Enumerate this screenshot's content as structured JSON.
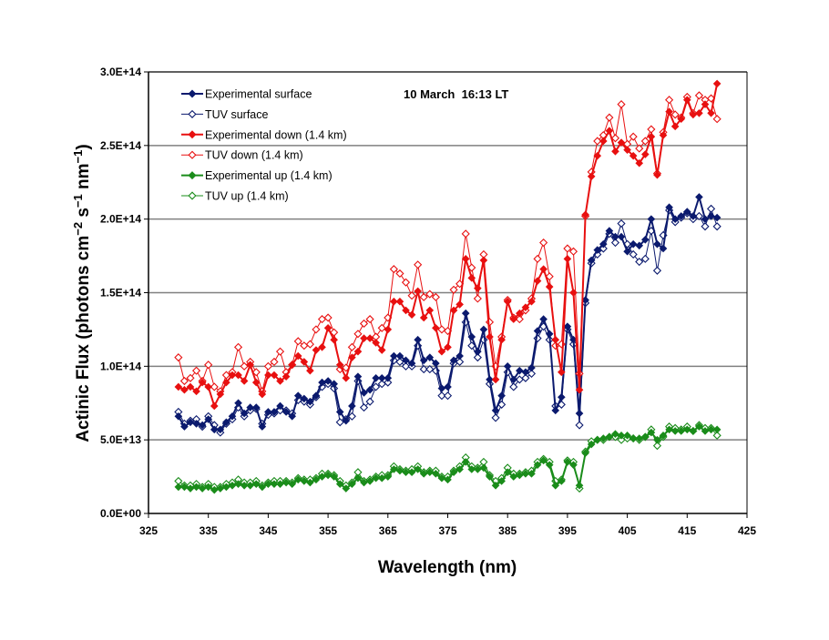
{
  "chart_data": {
    "type": "line",
    "title": "10 March  16:13 LT",
    "xlabel": "Wavelength (nm)",
    "ylabel": {
      "prefix": "Actinic Flux (photons cm",
      "sup1": "−2",
      "mid1": " s",
      "sup2": "−1",
      "mid2": " nm",
      "sup3": "−1",
      "suffix": ")"
    },
    "xlim": [
      325,
      425
    ],
    "ylim": [
      0,
      300000000000000.0
    ],
    "x_ticks": [
      "325",
      "335",
      "345",
      "355",
      "365",
      "375",
      "385",
      "395",
      "405",
      "415",
      "425"
    ],
    "y_ticks": [
      "0.0E+00",
      "5.0E+13",
      "1.0E+14",
      "1.5E+14",
      "2.0E+14",
      "2.5E+14",
      "3.0E+14"
    ],
    "grid": "horizontal",
    "legend_position": "top-left",
    "y_multiplier": 10000000000000.0,
    "x_start": 330,
    "x_step": 1,
    "series": [
      {
        "name": "Experimental surface",
        "color": "#0b1a6e",
        "marker": "filled-diamond",
        "values": [
          6.6,
          5.9,
          6.2,
          6.1,
          6.0,
          6.4,
          5.7,
          5.7,
          6.2,
          6.6,
          7.5,
          6.8,
          7.2,
          7.2,
          5.9,
          6.9,
          6.9,
          7.3,
          6.9,
          6.6,
          8.0,
          7.8,
          7.6,
          8.0,
          8.9,
          9.0,
          8.8,
          6.9,
          6.3,
          7.3,
          9.3,
          8.2,
          8.4,
          9.2,
          9.2,
          9.2,
          10.7,
          10.7,
          10.4,
          10.2,
          11.8,
          10.4,
          10.6,
          10.2,
          8.5,
          8.6,
          10.4,
          10.7,
          13.6,
          12.0,
          11.0,
          12.5,
          9.1,
          7.0,
          8.0,
          10.0,
          9.1,
          9.7,
          9.6,
          9.9,
          12.4,
          13.2,
          12.2,
          7.0,
          7.9,
          12.7,
          11.8,
          6.8,
          14.5,
          17.2,
          17.9,
          18.3,
          19.2,
          18.8,
          18.8,
          17.8,
          18.3,
          18.2,
          18.6,
          20.0,
          18.3,
          18.0,
          20.8,
          20.0,
          20.2,
          20.5,
          20.2,
          21.5,
          20.0,
          20.2,
          20.1
        ]
      },
      {
        "name": "TUV surface",
        "color": "#0b1a6e",
        "marker": "open-diamond",
        "values": [
          6.9,
          6.1,
          6.3,
          6.4,
          5.9,
          6.6,
          6.0,
          5.5,
          6.1,
          6.4,
          7.2,
          6.6,
          7.0,
          7.1,
          6.1,
          6.7,
          6.8,
          7.0,
          7.0,
          6.8,
          7.7,
          7.6,
          7.4,
          7.9,
          8.6,
          8.8,
          8.5,
          6.2,
          6.4,
          6.6,
          9.0,
          7.2,
          7.6,
          8.6,
          8.8,
          8.9,
          10.4,
          10.3,
          10.0,
          10.0,
          11.4,
          9.8,
          9.8,
          9.7,
          8.0,
          8.0,
          10.2,
          10.3,
          13.0,
          11.4,
          10.6,
          11.8,
          8.8,
          6.5,
          7.4,
          9.6,
          8.6,
          9.1,
          9.2,
          9.5,
          11.9,
          12.7,
          11.8,
          7.3,
          7.4,
          12.5,
          11.5,
          6.0,
          14.3,
          17.0,
          17.6,
          18.0,
          19.0,
          18.4,
          19.7,
          18.3,
          17.6,
          17.1,
          17.3,
          19.2,
          16.5,
          18.9,
          20.6,
          19.8,
          20.1,
          20.4,
          20.0,
          20.2,
          19.5,
          20.7,
          19.5
        ]
      },
      {
        "name": "Experimental down (1.4 km)",
        "color": "#e81010",
        "marker": "filled-diamond",
        "values": [
          8.6,
          8.4,
          8.6,
          8.3,
          8.9,
          8.6,
          7.3,
          8.1,
          8.9,
          9.4,
          9.4,
          9.0,
          10.1,
          8.9,
          8.1,
          9.4,
          9.4,
          9.0,
          9.3,
          10.1,
          10.7,
          10.3,
          9.7,
          11.1,
          11.3,
          12.6,
          11.8,
          10.1,
          9.2,
          10.6,
          11.0,
          11.9,
          11.9,
          11.6,
          11.1,
          12.5,
          14.4,
          14.4,
          13.8,
          13.5,
          15.1,
          13.3,
          13.8,
          12.6,
          11.0,
          11.3,
          13.8,
          14.2,
          17.3,
          16.0,
          15.3,
          17.2,
          12.0,
          9.1,
          11.8,
          14.4,
          13.2,
          13.6,
          14.0,
          14.4,
          15.8,
          16.6,
          15.4,
          11.8,
          9.6,
          17.3,
          15.0,
          8.4,
          20.3,
          22.9,
          24.3,
          25.3,
          26.0,
          24.6,
          25.2,
          24.7,
          24.3,
          23.8,
          24.4,
          25.6,
          23.0,
          25.7,
          27.3,
          26.3,
          26.8,
          28.1,
          27.1,
          27.2,
          27.8,
          27.2,
          29.2
        ]
      },
      {
        "name": "TUV down (1.4 km)",
        "color": "#e81010",
        "marker": "open-diamond",
        "values": [
          10.6,
          9.0,
          9.2,
          9.7,
          9.0,
          10.1,
          8.6,
          8.3,
          9.4,
          9.6,
          11.3,
          10.0,
          10.3,
          9.6,
          8.3,
          10.0,
          10.3,
          11.0,
          9.6,
          10.1,
          11.7,
          11.4,
          11.5,
          12.5,
          13.2,
          13.3,
          12.3,
          9.8,
          9.9,
          11.3,
          12.2,
          12.9,
          13.2,
          12.0,
          12.6,
          13.3,
          16.6,
          16.3,
          15.7,
          14.8,
          16.9,
          14.7,
          14.9,
          14.7,
          12.5,
          12.4,
          15.2,
          15.6,
          19.0,
          16.7,
          14.6,
          17.6,
          13.0,
          10.0,
          12.0,
          14.5,
          13.3,
          13.2,
          13.8,
          14.6,
          17.3,
          18.4,
          16.1,
          11.4,
          11.5,
          18.0,
          17.8,
          9.5,
          20.2,
          23.2,
          25.3,
          25.7,
          26.9,
          25.5,
          27.8,
          25.1,
          25.6,
          24.8,
          25.3,
          26.1,
          23.1,
          25.9,
          28.1,
          27.1,
          26.9,
          28.3,
          27.2,
          28.4,
          28.1,
          28.2,
          26.8
        ]
      },
      {
        "name": "Experimental up (1.4 km)",
        "color": "#1a8c1a",
        "marker": "filled-diamond",
        "values": [
          1.8,
          1.8,
          1.7,
          1.8,
          1.7,
          1.8,
          1.6,
          1.7,
          1.8,
          1.9,
          2.0,
          1.9,
          1.9,
          2.0,
          1.8,
          2.0,
          2.0,
          2.0,
          2.1,
          2.0,
          2.3,
          2.2,
          2.1,
          2.3,
          2.5,
          2.6,
          2.5,
          2.0,
          1.7,
          2.0,
          2.4,
          2.1,
          2.2,
          2.4,
          2.4,
          2.5,
          3.0,
          2.9,
          2.8,
          2.8,
          3.0,
          2.7,
          2.8,
          2.7,
          2.4,
          2.3,
          2.8,
          3.0,
          3.5,
          3.0,
          3.0,
          3.1,
          2.5,
          1.9,
          2.2,
          2.8,
          2.5,
          2.6,
          2.7,
          2.7,
          3.3,
          3.6,
          3.3,
          1.9,
          2.2,
          3.5,
          3.3,
          1.9,
          4.1,
          4.7,
          5.0,
          5.1,
          5.2,
          5.4,
          5.3,
          5.3,
          5.1,
          5.1,
          5.2,
          5.5,
          5.0,
          5.3,
          5.7,
          5.6,
          5.6,
          5.7,
          5.6,
          5.9,
          5.6,
          5.7,
          5.7
        ]
      },
      {
        "name": "TUV up (1.4 km)",
        "color": "#1a8c1a",
        "marker": "open-diamond",
        "values": [
          2.2,
          1.9,
          1.9,
          2.0,
          1.8,
          2.0,
          1.8,
          1.8,
          2.0,
          2.1,
          2.3,
          2.1,
          2.1,
          2.2,
          1.9,
          2.1,
          2.2,
          2.2,
          2.2,
          2.1,
          2.4,
          2.3,
          2.3,
          2.4,
          2.7,
          2.7,
          2.6,
          2.2,
          1.9,
          2.1,
          2.8,
          2.2,
          2.3,
          2.5,
          2.6,
          2.6,
          3.2,
          3.0,
          2.9,
          3.0,
          3.2,
          2.8,
          2.9,
          2.9,
          2.5,
          2.5,
          2.9,
          3.2,
          3.8,
          3.2,
          3.1,
          3.5,
          2.6,
          2.2,
          2.4,
          3.1,
          2.7,
          2.7,
          2.8,
          2.9,
          3.5,
          3.7,
          3.5,
          2.2,
          2.3,
          3.6,
          3.5,
          1.7,
          4.2,
          4.9,
          5.0,
          5.0,
          5.2,
          5.2,
          5.0,
          5.1,
          5.1,
          5.0,
          5.2,
          5.7,
          4.6,
          5.2,
          5.9,
          5.8,
          5.7,
          5.9,
          5.6,
          6.0,
          5.8,
          5.8,
          5.3
        ]
      }
    ]
  }
}
